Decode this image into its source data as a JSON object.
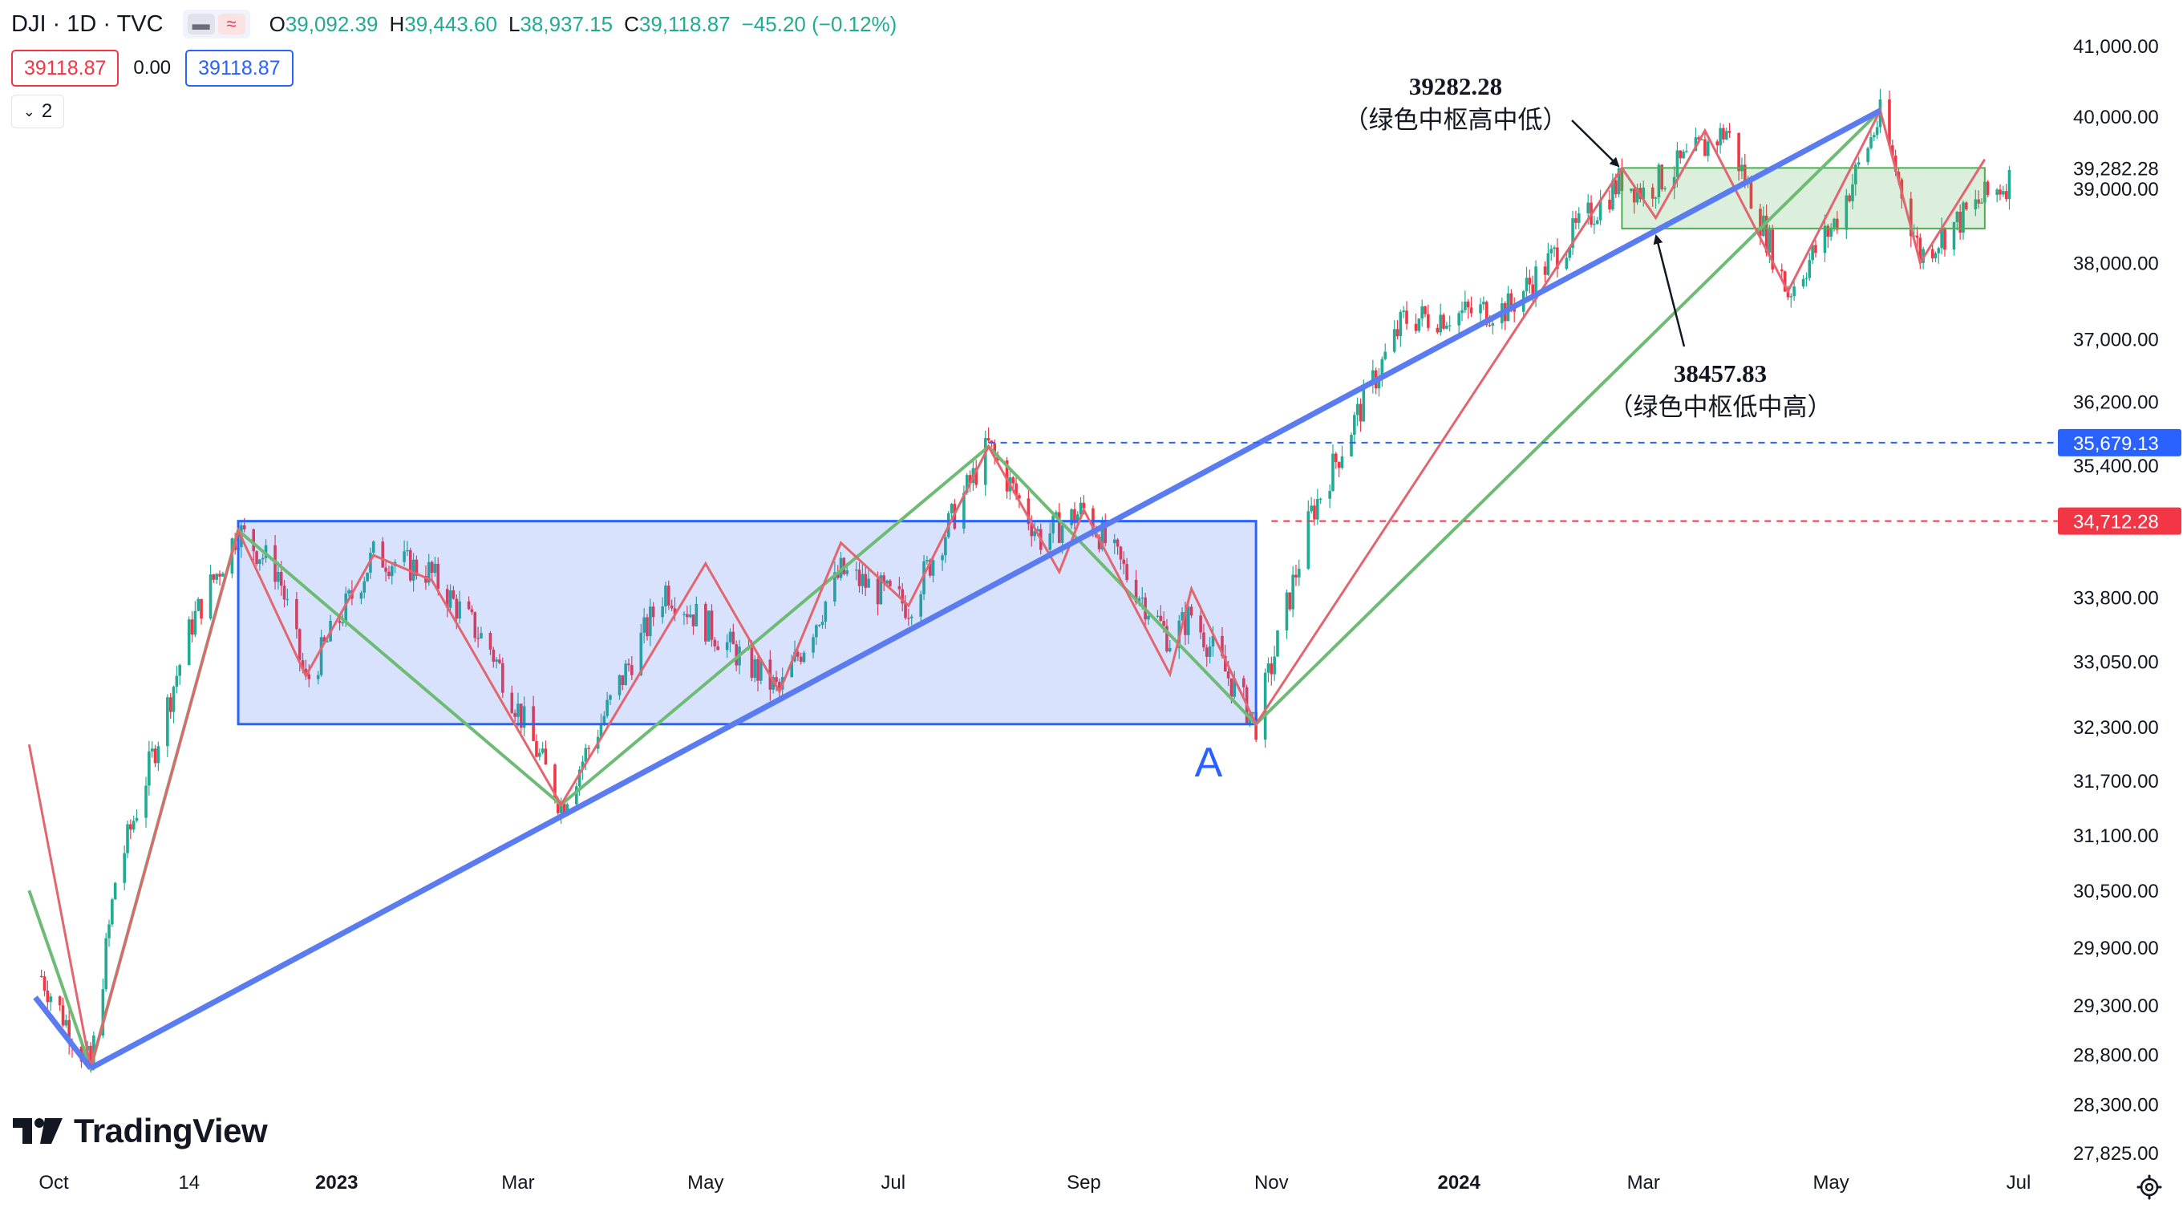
{
  "header": {
    "symbol": "DJI · 1D · TVC",
    "ohlc": [
      {
        "key": "O",
        "value": "39,092.39"
      },
      {
        "key": "H",
        "value": "39,443.60"
      },
      {
        "key": "L",
        "value": "38,937.15"
      },
      {
        "key": "C",
        "value": "39,118.87"
      }
    ],
    "change": "−45.20 (−0.12%)",
    "bid": "39118.87",
    "spread": "0.00",
    "ask": "39118.87",
    "collapsed_count": "2"
  },
  "branding": {
    "logo_text": "TradingView"
  },
  "colors": {
    "up": "#22ab94",
    "down": "#f23645",
    "blue_line": "#5b7cf0",
    "green_line": "#6dbb75",
    "red_line": "#e26670",
    "box_blue": "#2962ff",
    "box_green": "#4caf50",
    "label_blue": "#2962ff",
    "label_red": "#f23645"
  },
  "chart_data": {
    "type": "candlestick",
    "title": "DJI · 1D · TVC",
    "ylim": [
      27600,
      41400
    ],
    "y_scale": "log",
    "x_range": [
      "2022-09-27",
      "2024-07-03"
    ],
    "x_ticks": [
      {
        "label": "Oct",
        "date": "2022-10-01"
      },
      {
        "label": "14",
        "date": "2022-11-14"
      },
      {
        "label": "2023",
        "date": "2023-01-01"
      },
      {
        "label": "Mar",
        "date": "2023-03-01"
      },
      {
        "label": "May",
        "date": "2023-05-01"
      },
      {
        "label": "Jul",
        "date": "2023-07-01"
      },
      {
        "label": "Sep",
        "date": "2023-09-01"
      },
      {
        "label": "Nov",
        "date": "2023-11-01"
      },
      {
        "label": "2024",
        "date": "2024-01-01"
      },
      {
        "label": "Mar",
        "date": "2024-03-01"
      },
      {
        "label": "May",
        "date": "2024-05-01"
      },
      {
        "label": "Jul",
        "date": "2024-07-01"
      }
    ],
    "y_ticks": [
      "41,000.00",
      "40,000.00",
      "39,000.00",
      "38,000.00",
      "37,000.00",
      "36,200.00",
      "35,400.00",
      "33,800.00",
      "33,050.00",
      "32,300.00",
      "31,700.00",
      "31,100.00",
      "30,500.00",
      "29,900.00",
      "29,300.00",
      "28,800.00",
      "28,300.00",
      "27,825.00"
    ],
    "price_labels": [
      {
        "text": "39,282.28",
        "value": 39282.28,
        "style": "plain"
      },
      {
        "text": "35,679.13",
        "value": 35679.13,
        "style": "blue"
      },
      {
        "text": "34,712.28",
        "value": 34712.28,
        "style": "red"
      }
    ],
    "horizontal_lines": [
      {
        "value": 35679.13,
        "from": "2023-08-01",
        "color": "blue",
        "dashed": true
      },
      {
        "value": 34712.28,
        "from": "2023-11-01",
        "color": "red",
        "dashed": true
      }
    ],
    "price_anchors": [
      {
        "date": "2022-09-27",
        "value": 29600
      },
      {
        "date": "2022-10-13",
        "value": 28660
      },
      {
        "date": "2022-10-21",
        "value": 30600
      },
      {
        "date": "2022-11-15",
        "value": 33500
      },
      {
        "date": "2022-11-30",
        "value": 34600
      },
      {
        "date": "2022-12-13",
        "value": 34100
      },
      {
        "date": "2022-12-22",
        "value": 32800
      },
      {
        "date": "2023-01-13",
        "value": 34300
      },
      {
        "date": "2023-01-31",
        "value": 34100
      },
      {
        "date": "2023-02-20",
        "value": 33200
      },
      {
        "date": "2023-03-15",
        "value": 31430
      },
      {
        "date": "2023-04-18",
        "value": 33900
      },
      {
        "date": "2023-05-25",
        "value": 32700
      },
      {
        "date": "2023-06-14",
        "value": 34100
      },
      {
        "date": "2023-07-06",
        "value": 33700
      },
      {
        "date": "2023-08-01",
        "value": 35630
      },
      {
        "date": "2023-08-18",
        "value": 34500
      },
      {
        "date": "2023-09-01",
        "value": 34850
      },
      {
        "date": "2023-09-29",
        "value": 33300
      },
      {
        "date": "2023-10-06",
        "value": 33600
      },
      {
        "date": "2023-10-27",
        "value": 32330
      },
      {
        "date": "2023-11-14",
        "value": 34800
      },
      {
        "date": "2023-12-01",
        "value": 36200
      },
      {
        "date": "2023-12-14",
        "value": 37250
      },
      {
        "date": "2024-01-17",
        "value": 37400
      },
      {
        "date": "2024-02-23",
        "value": 39130
      },
      {
        "date": "2024-03-01",
        "value": 38950
      },
      {
        "date": "2024-03-28",
        "value": 39800
      },
      {
        "date": "2024-04-17",
        "value": 37600
      },
      {
        "date": "2024-05-03",
        "value": 38600
      },
      {
        "date": "2024-05-17",
        "value": 40000
      },
      {
        "date": "2024-05-30",
        "value": 38100
      },
      {
        "date": "2024-06-18",
        "value": 38800
      },
      {
        "date": "2024-06-28",
        "value": 39119
      }
    ],
    "drawings": {
      "blue_trendline": [
        {
          "date": "2022-10-13",
          "value": 28660
        },
        {
          "date": "2024-05-17",
          "value": 40080
        }
      ],
      "blue_pre_segment": [
        {
          "date": "2022-09-25",
          "value": 29380
        },
        {
          "date": "2022-10-13",
          "value": 28660
        }
      ],
      "green_zigzag": [
        {
          "date": "2022-09-23",
          "value": 30500
        },
        {
          "date": "2022-10-13",
          "value": 28660
        },
        {
          "date": "2022-11-30",
          "value": 34600
        },
        {
          "date": "2023-03-15",
          "value": 31430
        },
        {
          "date": "2023-08-01",
          "value": 35630
        },
        {
          "date": "2023-10-27",
          "value": 32330
        },
        {
          "date": "2024-05-17",
          "value": 40080
        }
      ],
      "red_zigzag": [
        {
          "date": "2022-09-23",
          "value": 32100
        },
        {
          "date": "2022-10-13",
          "value": 28660
        },
        {
          "date": "2022-11-30",
          "value": 34600
        },
        {
          "date": "2022-12-22",
          "value": 32880
        },
        {
          "date": "2023-01-13",
          "value": 34300
        },
        {
          "date": "2023-02-01",
          "value": 34000
        },
        {
          "date": "2023-03-15",
          "value": 31430
        },
        {
          "date": "2023-05-01",
          "value": 34200
        },
        {
          "date": "2023-05-25",
          "value": 32700
        },
        {
          "date": "2023-06-14",
          "value": 34450
        },
        {
          "date": "2023-07-06",
          "value": 33700
        },
        {
          "date": "2023-08-01",
          "value": 35630
        },
        {
          "date": "2023-08-24",
          "value": 34100
        },
        {
          "date": "2023-09-01",
          "value": 34850
        },
        {
          "date": "2023-09-29",
          "value": 32900
        },
        {
          "date": "2023-10-06",
          "value": 33900
        },
        {
          "date": "2023-10-27",
          "value": 32330
        },
        {
          "date": "2024-02-23",
          "value": 39282
        },
        {
          "date": "2024-03-05",
          "value": 38600
        },
        {
          "date": "2024-03-21",
          "value": 39800
        },
        {
          "date": "2024-04-17",
          "value": 37620
        },
        {
          "date": "2024-05-17",
          "value": 40080
        },
        {
          "date": "2024-05-30",
          "value": 38000
        },
        {
          "date": "2024-06-20",
          "value": 39400
        }
      ]
    },
    "boxes": [
      {
        "name": "blue_zhongshu",
        "from": "2022-11-30",
        "to": "2023-10-27",
        "top": 34712.28,
        "bottom": 32330,
        "color": "blue"
      },
      {
        "name": "green_zhongshu",
        "from": "2024-02-23",
        "to": "2024-06-20",
        "top": 39282.28,
        "bottom": 38457.83,
        "color": "green"
      }
    ],
    "annotations": [
      {
        "id": "upper",
        "value_text": "39282.28",
        "note": "（绿色中枢高中低）"
      },
      {
        "id": "lower",
        "value_text": "38457.83",
        "note": "（绿色中枢低中高）"
      },
      {
        "id": "a",
        "text": "A"
      }
    ]
  }
}
